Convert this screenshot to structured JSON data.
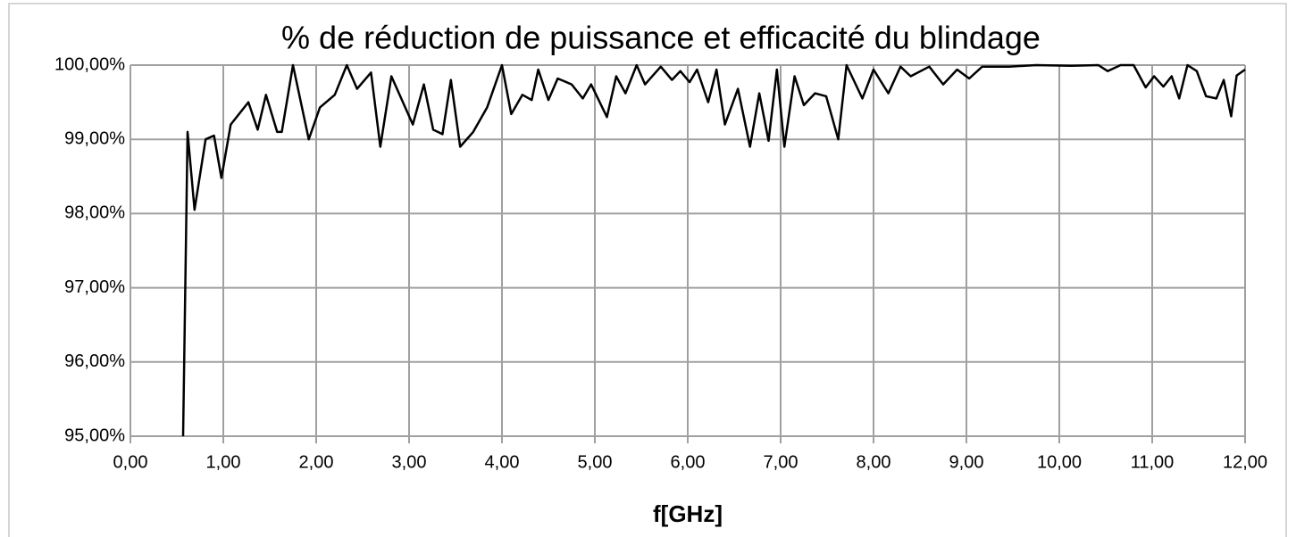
{
  "chart_data": {
    "type": "line",
    "title": "% de réduction de puissance et efficacité du blindage",
    "x_label": "f[GHz]",
    "x": [
      0.567,
      0.615,
      0.69,
      0.81,
      0.9,
      0.98,
      1.08,
      1.27,
      1.37,
      1.46,
      1.58,
      1.63,
      1.75,
      1.92,
      2.04,
      2.2,
      2.33,
      2.44,
      2.59,
      2.69,
      2.81,
      3.04,
      3.16,
      3.26,
      3.36,
      3.45,
      3.55,
      3.69,
      3.84,
      4.0,
      4.1,
      4.22,
      4.32,
      4.39,
      4.5,
      4.6,
      4.75,
      4.87,
      4.96,
      5.13,
      5.23,
      5.33,
      5.45,
      5.54,
      5.71,
      5.83,
      5.92,
      6.02,
      6.1,
      6.22,
      6.31,
      6.4,
      6.54,
      6.67,
      6.77,
      6.87,
      6.96,
      7.04,
      7.15,
      7.25,
      7.37,
      7.49,
      7.62,
      7.71,
      7.88,
      8.0,
      8.16,
      8.29,
      8.4,
      8.6,
      8.75,
      8.9,
      9.03,
      9.17,
      9.46,
      9.75,
      10.13,
      10.42,
      10.52,
      10.66,
      10.8,
      10.93,
      11.02,
      11.12,
      11.21,
      11.29,
      11.38,
      11.48,
      11.58,
      11.69,
      11.77,
      11.85,
      11.91,
      12.0
    ],
    "series": [
      {
        "name": "efficacité",
        "color": "#000000",
        "values": [
          95.0,
          99.1,
          98.05,
          99.0,
          99.05,
          98.48,
          99.2,
          99.5,
          99.13,
          99.6,
          99.1,
          99.1,
          100.0,
          99.0,
          99.43,
          99.6,
          100.0,
          99.68,
          99.9,
          98.9,
          99.85,
          99.2,
          99.74,
          99.13,
          99.07,
          99.8,
          98.9,
          99.1,
          99.43,
          100.0,
          99.34,
          99.6,
          99.53,
          99.94,
          99.53,
          99.82,
          99.74,
          99.55,
          99.74,
          99.3,
          99.85,
          99.62,
          100.0,
          99.74,
          99.98,
          99.8,
          99.92,
          99.77,
          99.94,
          99.5,
          99.94,
          99.2,
          99.68,
          98.9,
          99.62,
          98.98,
          99.94,
          98.9,
          99.85,
          99.46,
          99.62,
          99.58,
          99.0,
          100.0,
          99.55,
          99.94,
          99.62,
          99.98,
          99.85,
          99.98,
          99.74,
          99.94,
          99.82,
          99.98,
          99.98,
          100.0,
          99.99,
          100.0,
          99.92,
          100.0,
          100.0,
          99.7,
          99.85,
          99.71,
          99.85,
          99.55,
          100.0,
          99.92,
          99.58,
          99.55,
          99.8,
          99.31,
          99.86,
          99.94
        ]
      }
    ],
    "xlim": [
      0,
      12
    ],
    "xticks": [
      {
        "value": 0,
        "label": "0,00"
      },
      {
        "value": 1,
        "label": "1,00"
      },
      {
        "value": 2,
        "label": "2,00"
      },
      {
        "value": 3,
        "label": "3,00"
      },
      {
        "value": 4,
        "label": "4,00"
      },
      {
        "value": 5,
        "label": "5,00"
      },
      {
        "value": 6,
        "label": "6,00"
      },
      {
        "value": 7,
        "label": "7,00"
      },
      {
        "value": 8,
        "label": "8,00"
      },
      {
        "value": 9,
        "label": "9,00"
      },
      {
        "value": 10,
        "label": "10,00"
      },
      {
        "value": 11,
        "label": "11,00"
      },
      {
        "value": 12,
        "label": "12,00"
      }
    ],
    "ylim": [
      95,
      100
    ],
    "yticks": [
      {
        "value": 95,
        "label": "95,00%"
      },
      {
        "value": 96,
        "label": "96,00%"
      },
      {
        "value": 97,
        "label": "97,00%"
      },
      {
        "value": 98,
        "label": "98,00%"
      },
      {
        "value": 99,
        "label": "99,00%"
      },
      {
        "value": 100,
        "label": "100,00%"
      }
    ],
    "grid": true
  }
}
